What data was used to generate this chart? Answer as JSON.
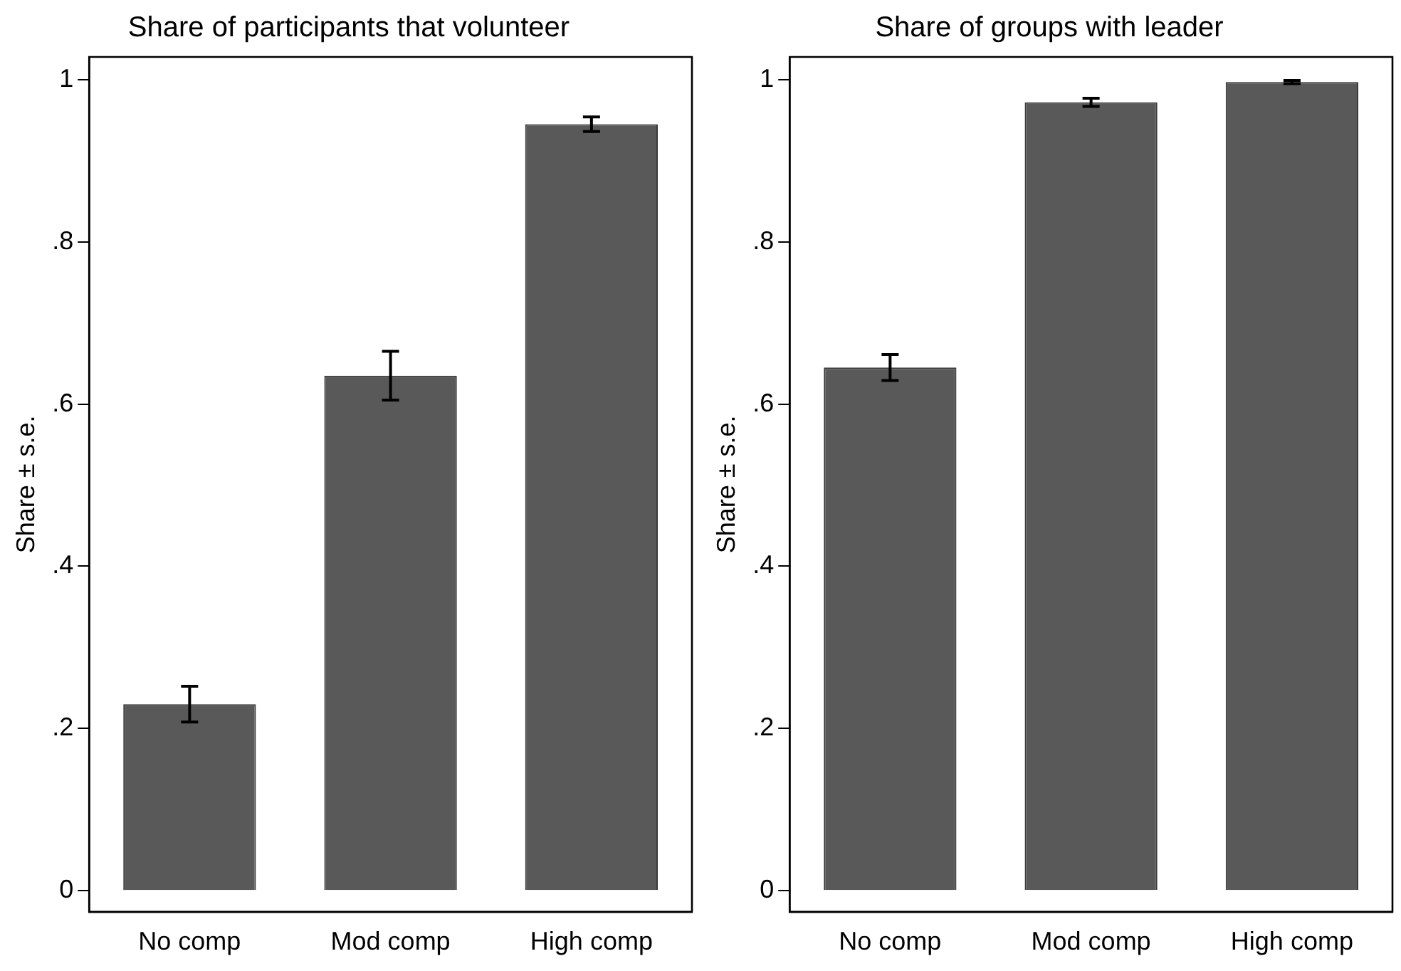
{
  "chart_data": [
    {
      "type": "bar",
      "title": "Share of participants that volunteer",
      "ylabel": "Share ± s.e.",
      "categories": [
        "No comp",
        "Mod comp",
        "High comp"
      ],
      "values": [
        0.23,
        0.635,
        0.945
      ],
      "errors": [
        0.022,
        0.03,
        0.009
      ],
      "color": "#595959",
      "ylim": [
        -0.026,
        1.028
      ],
      "yticks": [
        {
          "value": 0,
          "label": "0"
        },
        {
          "value": 0.2,
          "label": ".2"
        },
        {
          "value": 0.4,
          "label": ".4"
        },
        {
          "value": 0.6,
          "label": ".6"
        },
        {
          "value": 0.8,
          "label": ".8"
        },
        {
          "value": 1,
          "label": "1"
        }
      ],
      "grid": false,
      "legend": false
    },
    {
      "type": "bar",
      "title": "Share of groups with leader",
      "ylabel": "Share ± s.e.",
      "categories": [
        "No comp",
        "Mod comp",
        "High comp"
      ],
      "values": [
        0.645,
        0.972,
        0.997
      ],
      "errors": [
        0.016,
        0.005,
        0.002
      ],
      "color": "#595959",
      "ylim": [
        -0.026,
        1.028
      ],
      "yticks": [
        {
          "value": 0,
          "label": "0"
        },
        {
          "value": 0.2,
          "label": ".2"
        },
        {
          "value": 0.4,
          "label": ".4"
        },
        {
          "value": 0.6,
          "label": ".6"
        },
        {
          "value": 0.8,
          "label": ".8"
        },
        {
          "value": 1,
          "label": "1"
        }
      ],
      "grid": false,
      "legend": false
    }
  ]
}
